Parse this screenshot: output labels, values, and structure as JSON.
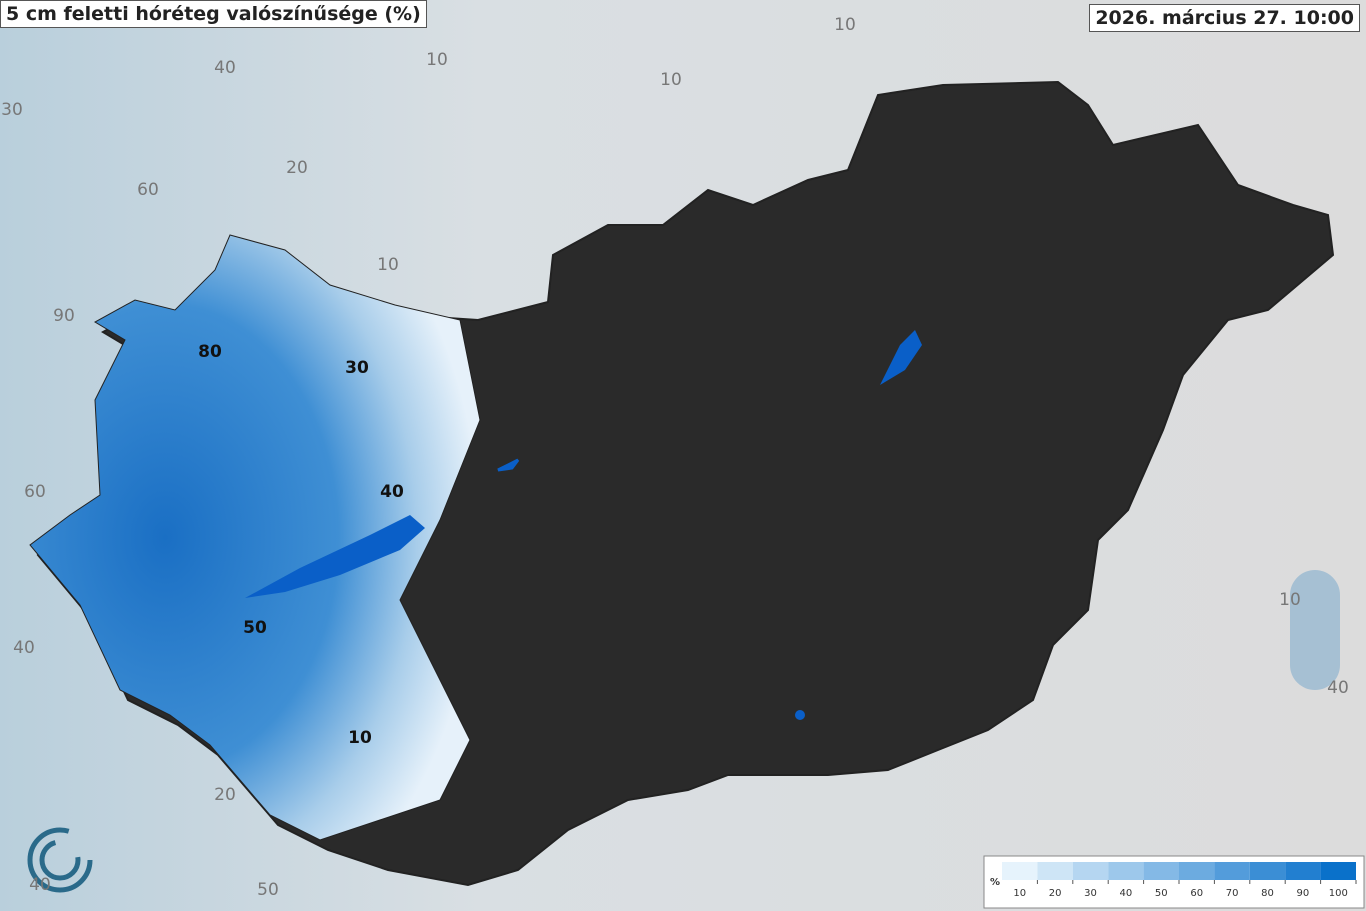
{
  "header": {
    "title": "5 cm feletti hóréteg valószínűsége (%)",
    "timestamp": "2026. március 27. 10:00"
  },
  "map": {
    "contour_labels": [
      "80",
      "30",
      "40",
      "50",
      "10",
      "90",
      "60",
      "30",
      "40",
      "20",
      "10",
      "10",
      "10",
      "10",
      "60",
      "40",
      "20",
      "40",
      "50",
      "10",
      "40"
    ]
  },
  "legend": {
    "unit": "%",
    "ticks": [
      10,
      20,
      30,
      40,
      50,
      60,
      70,
      80,
      90,
      100
    ]
  }
}
